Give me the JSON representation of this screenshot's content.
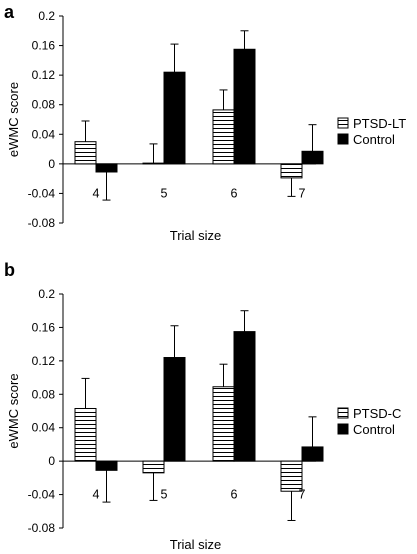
{
  "chart_data": [
    {
      "type": "bar",
      "panel": "a",
      "categories": [
        "4",
        "5",
        "6",
        "7"
      ],
      "series": [
        {
          "name": "PTSD-LT",
          "pattern": "horizontal-stripes",
          "values": [
            0.03,
            0.001,
            0.073,
            -0.019
          ],
          "errors": [
            0.028,
            0.026,
            0.027,
            0.025
          ]
        },
        {
          "name": "Control",
          "color": "#000000",
          "values": [
            -0.011,
            0.124,
            0.155,
            0.017
          ],
          "errors": [
            0.038,
            0.038,
            0.025,
            0.036
          ]
        }
      ],
      "xlabel": "Trial size",
      "ylabel": "eWMC score",
      "ylim": [
        -0.08,
        0.2
      ],
      "yticks": [
        "0.2",
        "0.16",
        "0.12",
        "0.08",
        "0.04",
        "0",
        "-0.04",
        "-0.08"
      ],
      "legend_position": "right"
    },
    {
      "type": "bar",
      "panel": "b",
      "categories": [
        "4",
        "5",
        "6",
        "7"
      ],
      "series": [
        {
          "name": "PTSD-C",
          "pattern": "horizontal-stripes",
          "values": [
            0.063,
            -0.014,
            0.089,
            -0.036
          ],
          "errors": [
            0.036,
            0.033,
            0.027,
            0.035
          ]
        },
        {
          "name": "Control",
          "color": "#000000",
          "values": [
            -0.011,
            0.124,
            0.155,
            0.017
          ],
          "errors": [
            0.038,
            0.038,
            0.025,
            0.036
          ]
        }
      ],
      "xlabel": "Trial size",
      "ylabel": "eWMC score",
      "ylim": [
        -0.08,
        0.2
      ],
      "yticks": [
        "0.2",
        "0.16",
        "0.12",
        "0.08",
        "0.04",
        "0",
        "-0.04",
        "-0.08"
      ],
      "legend_position": "right"
    }
  ]
}
